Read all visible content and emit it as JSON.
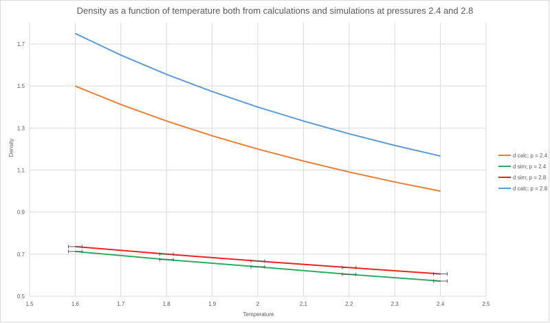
{
  "chart_data": {
    "type": "line",
    "title": "Density as a function of temperature both from calculations and simulations at pressures 2.4 and 2.8",
    "xlabel": "Temperature",
    "ylabel": "Density",
    "xlim": [
      1.5,
      2.5
    ],
    "ylim": [
      0.5,
      1.8
    ],
    "x_ticks": [
      "1.5",
      "1.6",
      "1.7",
      "1.8",
      "1.9",
      "2",
      "2.1",
      "2.2",
      "2.3",
      "2.4",
      "2.5"
    ],
    "y_ticks": [
      "0.5",
      "0.7",
      "0.9",
      "1.1",
      "1.3",
      "1.5",
      "1.7"
    ],
    "grid": true,
    "legend_position": "right",
    "series": [
      {
        "name": "d calc; p = 2.4",
        "color": "#ed7d31",
        "x": [
          1.6,
          1.7,
          1.8,
          1.9,
          2.0,
          2.1,
          2.2,
          2.3,
          2.4
        ],
        "y": [
          1.5,
          1.4118,
          1.3333,
          1.2632,
          1.2,
          1.1429,
          1.0909,
          1.0435,
          1.0
        ],
        "error_x": null
      },
      {
        "name": "d sim; p = 2.4",
        "color": "#27ae60",
        "x": [
          1.6,
          1.8,
          2.0,
          2.2,
          2.4
        ],
        "y": [
          0.713,
          0.674,
          0.64,
          0.604,
          0.572
        ],
        "error_x": 0.015
      },
      {
        "name": "d sim; p = 2.8",
        "color": "#ee2222",
        "x": [
          1.6,
          1.8,
          2.0,
          2.2,
          2.4
        ],
        "y": [
          0.736,
          0.7,
          0.667,
          0.636,
          0.606
        ],
        "error_x": 0.015
      },
      {
        "name": "d calc; p = 2.8",
        "color": "#5b9bd5",
        "x": [
          1.6,
          1.7,
          1.8,
          1.9,
          2.0,
          2.1,
          2.2,
          2.3,
          2.4
        ],
        "y": [
          1.75,
          1.6471,
          1.5556,
          1.4737,
          1.4,
          1.3333,
          1.2727,
          1.2174,
          1.1667
        ],
        "error_x": null
      }
    ]
  }
}
